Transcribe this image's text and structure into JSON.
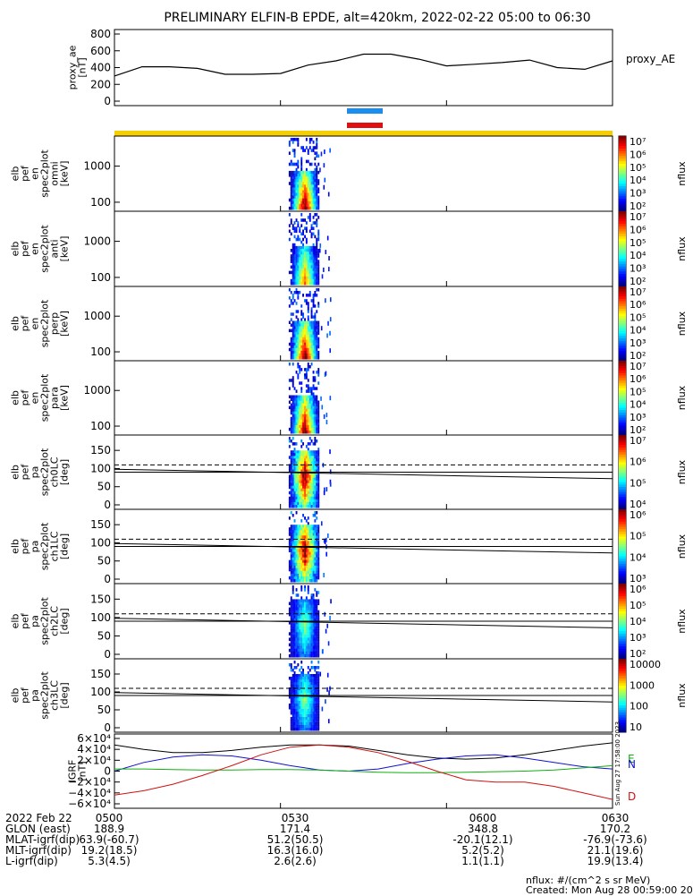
{
  "title": "PRELIMINARY ELFIN-B EPDE, alt=420km, 2022-02-22 05:00 to 06:30",
  "colors": {
    "bar_blue": "#1a8ef0",
    "bar_red": "#e01010",
    "bar_yellow": "#f5cf00",
    "trace_black": "#000000",
    "bx": "#1010d0",
    "by": "#10b010",
    "bz": "#d01010"
  },
  "chart_data": [
    {
      "type": "line",
      "panel": "proxy_ae",
      "ylabel": [
        "proxy_ae",
        "[nT]"
      ],
      "legend": "proxy_AE",
      "ylim": [
        0,
        800
      ],
      "yticks": [
        "800",
        "600",
        "400",
        "200",
        "0"
      ],
      "x": [
        "05:00",
        "05:05",
        "05:10",
        "05:15",
        "05:20",
        "05:25",
        "05:30",
        "05:35",
        "05:40",
        "05:45",
        "05:50",
        "05:55",
        "06:00",
        "06:05",
        "06:10",
        "06:15",
        "06:20",
        "06:25",
        "06:30"
      ],
      "values": [
        300,
        410,
        410,
        390,
        320,
        320,
        330,
        430,
        480,
        560,
        560,
        500,
        420,
        440,
        460,
        490,
        400,
        380,
        480
      ]
    },
    {
      "type": "heatmap",
      "panel": "omni",
      "ylabel": [
        "elb",
        "pef",
        "en",
        "spec2plot",
        "omni",
        "[keV]"
      ],
      "yscale": "log",
      "yticks": [
        "1000",
        "100"
      ],
      "colorbar": {
        "label": "nflux",
        "ticks": [
          "10^7",
          "10^6",
          "10^5",
          "10^4",
          "10^3",
          "10^2"
        ]
      }
    },
    {
      "type": "heatmap",
      "panel": "anti",
      "ylabel": [
        "elb",
        "pef",
        "en",
        "spec2plot",
        "anti",
        "[keV]"
      ],
      "yscale": "log",
      "yticks": [
        "1000",
        "100"
      ],
      "colorbar": {
        "label": "nflux",
        "ticks": [
          "10^7",
          "10^6",
          "10^5",
          "10^4",
          "10^3",
          "10^2"
        ]
      }
    },
    {
      "type": "heatmap",
      "panel": "perp",
      "ylabel": [
        "elb",
        "pef",
        "en",
        "spec2plot",
        "perp",
        "[keV]"
      ],
      "yscale": "log",
      "yticks": [
        "1000",
        "100"
      ],
      "colorbar": {
        "label": "nflux",
        "ticks": [
          "10^7",
          "10^6",
          "10^5",
          "10^4",
          "10^3",
          "10^2"
        ]
      }
    },
    {
      "type": "heatmap",
      "panel": "para",
      "ylabel": [
        "elb",
        "pef",
        "en",
        "spec2plot",
        "para",
        "[keV]"
      ],
      "yscale": "log",
      "yticks": [
        "1000",
        "100"
      ],
      "colorbar": {
        "label": "nflux",
        "ticks": [
          "10^7",
          "10^6",
          "10^5",
          "10^4",
          "10^3",
          "10^2"
        ]
      }
    },
    {
      "type": "heatmap",
      "panel": "ch0LC",
      "ylabel": [
        "elb",
        "pef",
        "pa",
        "spec2plot",
        "ch0LC",
        "[deg]"
      ],
      "ylim": [
        0,
        180
      ],
      "yticks": [
        "150",
        "100",
        "50",
        "0"
      ],
      "colorbar": {
        "label": "nflux",
        "ticks": [
          "10^7",
          "10^6",
          "10^5",
          "10^4"
        ]
      }
    },
    {
      "type": "heatmap",
      "panel": "ch1LC",
      "ylabel": [
        "elb",
        "pef",
        "pa",
        "spec2plot",
        "ch1LC",
        "[deg]"
      ],
      "ylim": [
        0,
        180
      ],
      "yticks": [
        "150",
        "100",
        "50",
        "0"
      ],
      "colorbar": {
        "label": "nflux",
        "ticks": [
          "10^6",
          "10^5",
          "10^4",
          "10^3"
        ]
      }
    },
    {
      "type": "heatmap",
      "panel": "ch2LC",
      "ylabel": [
        "elb",
        "pef",
        "pa",
        "spec2plot",
        "ch2LC",
        "[deg]"
      ],
      "ylim": [
        0,
        180
      ],
      "yticks": [
        "150",
        "100",
        "50",
        "0"
      ],
      "colorbar": {
        "label": "nflux",
        "ticks": [
          "10^6",
          "10^5",
          "10^4",
          "10^3",
          "10^2"
        ]
      }
    },
    {
      "type": "heatmap",
      "panel": "ch3LC",
      "ylabel": [
        "elb",
        "pef",
        "pa",
        "spec2plot",
        "ch3LC",
        "[deg]"
      ],
      "ylim": [
        0,
        180
      ],
      "yticks": [
        "150",
        "100",
        "50",
        "0"
      ],
      "colorbar": {
        "label": "nflux",
        "ticks": [
          "10000",
          "1000",
          "100",
          "10"
        ]
      }
    },
    {
      "type": "line",
      "panel": "igrf",
      "ylabel": [
        "IGRF",
        "[nT]"
      ],
      "ylim": [
        -60000,
        60000
      ],
      "yticks": [
        "6×10^4",
        "4×10^4",
        "2×10^4",
        "0",
        "−2×10^4",
        "−4×10^4",
        "−6×10^4"
      ],
      "legend": [
        "E",
        "N",
        "D"
      ],
      "series": [
        {
          "name": "total",
          "values": [
            48000,
            40000,
            34000,
            34000,
            38000,
            44000,
            48000,
            48000,
            46000,
            38000,
            30000,
            24000,
            22000,
            24000,
            30000,
            38000,
            46000,
            52000
          ]
        },
        {
          "name": "N",
          "values": [
            0,
            16000,
            26000,
            30000,
            28000,
            20000,
            10000,
            2000,
            0,
            4000,
            14000,
            22000,
            28000,
            30000,
            24000,
            16000,
            8000,
            4000
          ]
        },
        {
          "name": "E",
          "values": [
            4000,
            4000,
            3000,
            2000,
            2000,
            3000,
            3000,
            2000,
            0,
            -2000,
            -3000,
            -3000,
            -2000,
            -1000,
            0,
            2000,
            6000,
            10000
          ]
        },
        {
          "name": "D",
          "values": [
            -44000,
            -36000,
            -24000,
            -8000,
            10000,
            30000,
            44000,
            48000,
            44000,
            34000,
            18000,
            0,
            -16000,
            -20000,
            -20000,
            -28000,
            -40000,
            -52000
          ]
        }
      ]
    }
  ],
  "time_ticks": [
    "0500",
    "0530",
    "0600",
    "0630"
  ],
  "side_stamp": "Sun Aug 27 17:58:00 2023",
  "ephemeris": [
    {
      "label": "2022 Feb 22",
      "values": [
        "0500",
        "0530",
        "0600",
        "0630"
      ]
    },
    {
      "label": "GLON (east)",
      "values": [
        "188.9",
        "171.4",
        "348.8",
        "170.2"
      ]
    },
    {
      "label": "MLAT-igrf(dip)",
      "values": [
        "63.9(-60.7)",
        "51.2(50.5)",
        "-20.1(12.1)",
        "-76.9(-73.6)"
      ]
    },
    {
      "label": "MLT-igrf(dip)",
      "values": [
        "19.2(18.5)",
        "16.3(16.0)",
        "5.2(5.2)",
        "21.1(19.6)"
      ]
    },
    {
      "label": "L-igrf(dip)",
      "values": [
        "5.3(4.5)",
        "2.6(2.6)",
        "1.1(1.1)",
        "19.9(13.4)"
      ]
    }
  ],
  "footer": {
    "units": "nflux: #/(cm^2 s sr MeV)",
    "created": "Created: Mon Aug 28 00:59:00 2023"
  }
}
